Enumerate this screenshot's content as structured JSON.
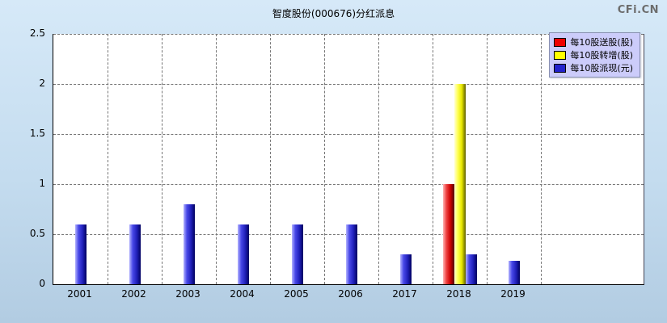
{
  "page": {
    "title": "智度股份(000676)分红派息",
    "watermark": "CFi.CN"
  },
  "legend": [
    {
      "label": "每10股送股(股)",
      "color": "#ee0000"
    },
    {
      "label": "每10股转增(股)",
      "color": "#ffff00"
    },
    {
      "label": "每10股派现(元)",
      "color": "#2222cc"
    }
  ],
  "chart_data": {
    "type": "bar",
    "title": "智度股份(000676)分红派息",
    "categories": [
      "2001",
      "2002",
      "2003",
      "2004",
      "2005",
      "2006",
      "2017",
      "2018",
      "2019"
    ],
    "series": [
      {
        "name": "每10股送股(股)",
        "color": "red",
        "values": [
          0,
          0,
          0,
          0,
          0,
          0,
          0,
          1.0,
          0
        ]
      },
      {
        "name": "每10股转增(股)",
        "color": "yellow",
        "values": [
          0,
          0,
          0,
          0,
          0,
          0,
          0,
          2.0,
          0
        ]
      },
      {
        "name": "每10股派现(元)",
        "color": "blue",
        "values": [
          0.6,
          0.6,
          0.8,
          0.6,
          0.6,
          0.6,
          0.3,
          0.3,
          0.23
        ]
      }
    ],
    "xlabel": "",
    "ylabel": "",
    "ylim": [
      0,
      2.5
    ],
    "yticks": [
      0,
      0.5,
      1,
      1.5,
      2,
      2.5
    ],
    "grid": "dashed",
    "legend_position": "top-right"
  }
}
